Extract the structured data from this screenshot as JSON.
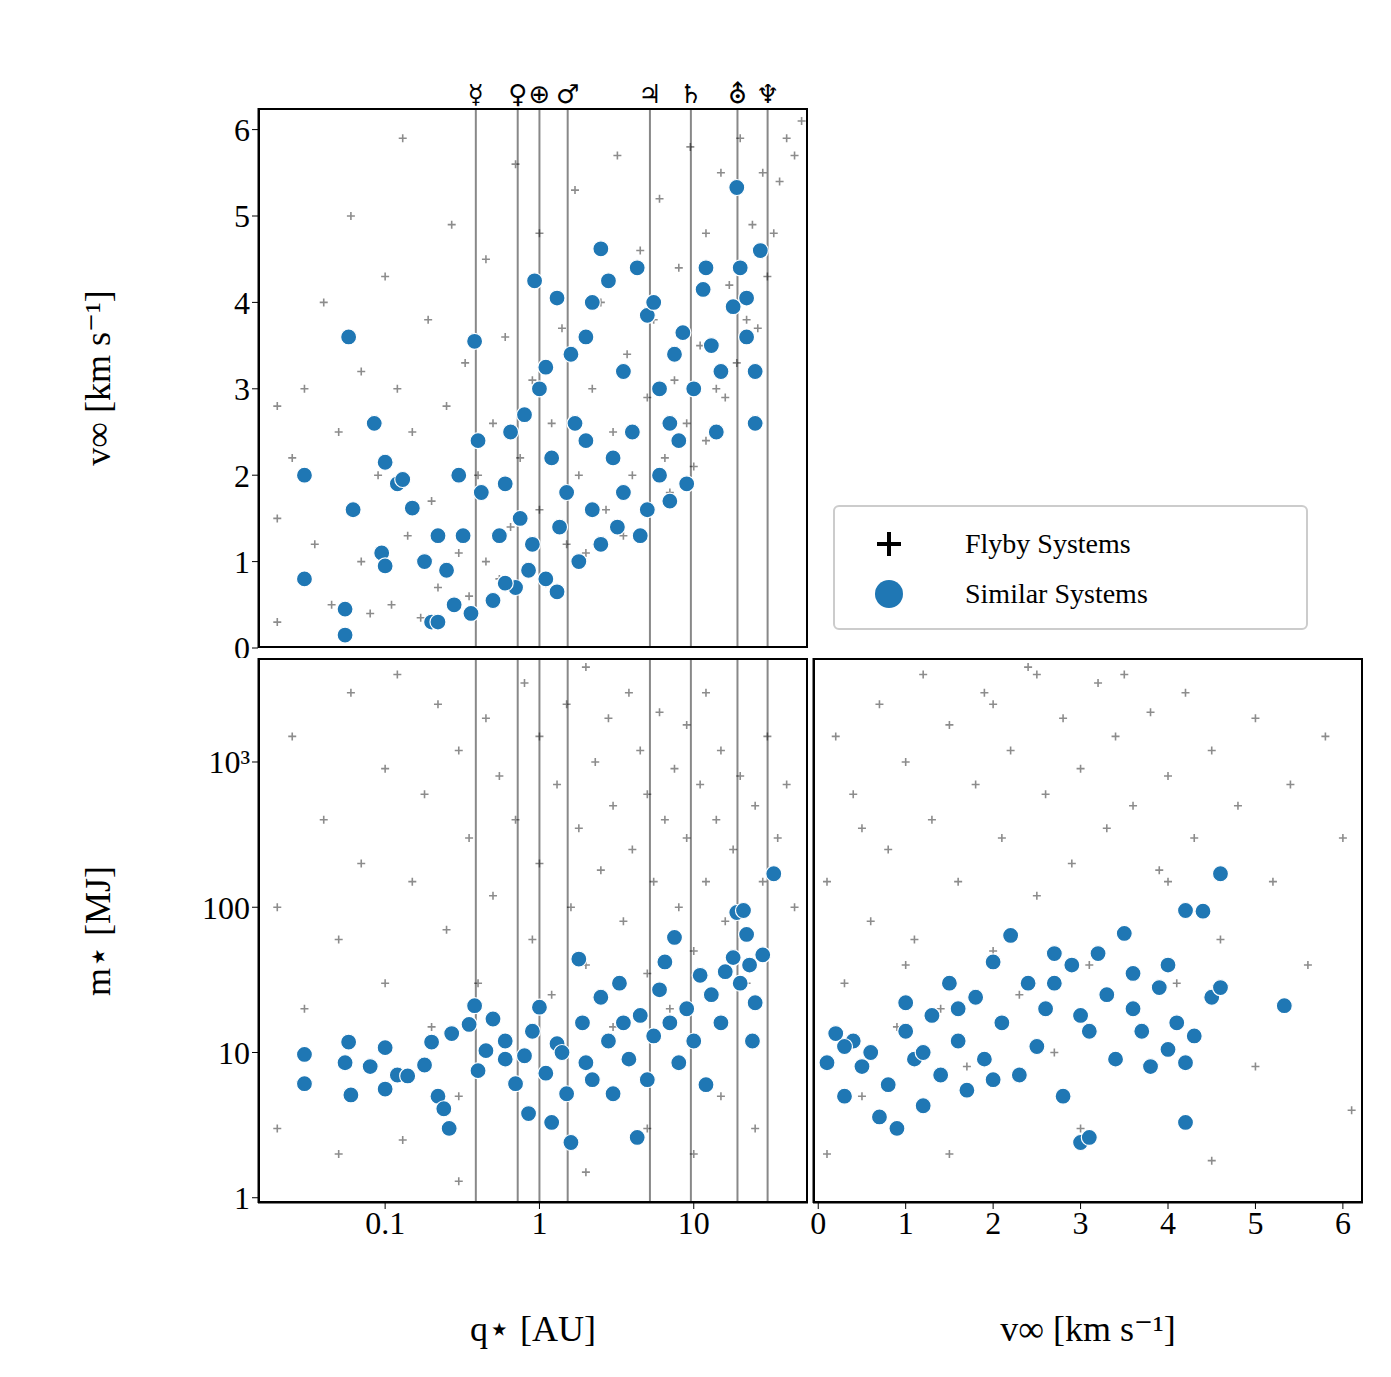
{
  "chart_data": [
    {
      "type": "scatter",
      "ylabel": "v∞ [km s⁻¹]",
      "log": "x",
      "tick_labels": "y",
      "legend": "right",
      "xlim": [
        0.015,
        55
      ],
      "xticks": [
        0.1,
        1,
        10
      ],
      "ylim": [
        0,
        6.25
      ],
      "yticks": [
        0,
        1,
        2,
        3,
        4,
        5,
        6
      ],
      "annotations": [
        {
          "x": 0.387,
          "label": "☿"
        },
        {
          "x": 0.723,
          "label": "♀"
        },
        {
          "x": 1.0,
          "label": "⊕"
        },
        {
          "x": 1.524,
          "label": "♂"
        },
        {
          "x": 5.2,
          "label": "♃"
        },
        {
          "x": 9.58,
          "label": "♄"
        },
        {
          "x": 19.2,
          "label": "⛢"
        },
        {
          "x": 30.1,
          "label": "♆"
        }
      ],
      "series": [
        {
          "name": "Flyby Systems",
          "color": "#000000",
          "marker": "plus",
          "x": [
            0.02,
            0.02,
            0.02,
            0.025,
            0.03,
            0.035,
            0.04,
            0.045,
            0.05,
            0.06,
            0.07,
            0.07,
            0.08,
            0.09,
            0.1,
            0.11,
            0.12,
            0.13,
            0.14,
            0.15,
            0.17,
            0.19,
            0.2,
            0.22,
            0.25,
            0.27,
            0.3,
            0.33,
            0.35,
            0.4,
            0.45,
            0.45,
            0.5,
            0.55,
            0.6,
            0.65,
            0.7,
            0.75,
            0.8,
            0.9,
            1.0,
            1.0,
            1.1,
            1.2,
            1.4,
            1.5,
            1.7,
            1.8,
            2.0,
            2.2,
            2.5,
            2.7,
            3.0,
            3.2,
            3.5,
            3.7,
            4.0,
            4.5,
            5.0,
            5.0,
            5.5,
            6.0,
            6.5,
            7.0,
            7.5,
            8.0,
            9.0,
            9.5,
            10,
            11,
            12,
            12,
            14,
            15,
            16,
            17,
            19,
            20,
            22,
            24,
            26,
            28,
            30,
            33,
            36,
            40,
            45,
            50
          ],
          "y": [
            0.3,
            1.5,
            2.8,
            2.2,
            3.0,
            1.2,
            4.0,
            0.5,
            2.5,
            5.0,
            1.0,
            3.2,
            0.4,
            2.0,
            4.3,
            0.5,
            3.0,
            5.9,
            1.3,
            2.5,
            0.35,
            3.8,
            1.7,
            0.7,
            2.8,
            4.9,
            1.1,
            3.3,
            0.6,
            2.0,
            1.0,
            4.5,
            2.6,
            0.8,
            3.6,
            1.4,
            5.6,
            2.2,
            0.9,
            3.1,
            1.6,
            4.8,
            0.75,
            2.6,
            3.7,
            1.2,
            5.3,
            2.0,
            1.1,
            3.0,
            4.0,
            1.6,
            2.5,
            5.7,
            1.3,
            3.4,
            2.0,
            4.6,
            1.6,
            2.9,
            3.8,
            5.2,
            2.2,
            1.8,
            3.1,
            4.4,
            2.6,
            5.8,
            2.1,
            3.5,
            4.8,
            2.4,
            3.0,
            5.5,
            2.9,
            4.2,
            3.3,
            5.9,
            3.8,
            4.9,
            3.7,
            5.5,
            4.3,
            4.8,
            5.4,
            5.9,
            5.7,
            6.1
          ]
        },
        {
          "name": "Similar Systems",
          "color": "#1f77b4",
          "marker": "circle",
          "x": [
            0.03,
            0.03,
            0.058,
            0.055,
            0.055,
            0.062,
            0.085,
            0.095,
            0.1,
            0.1,
            0.12,
            0.13,
            0.15,
            0.18,
            0.2,
            0.22,
            0.22,
            0.25,
            0.28,
            0.3,
            0.32,
            0.36,
            0.38,
            0.4,
            0.42,
            0.5,
            0.55,
            0.6,
            0.65,
            0.7,
            0.75,
            0.8,
            0.85,
            0.9,
            0.93,
            1.0,
            1.1,
            1.2,
            1.3,
            1.35,
            1.5,
            1.6,
            1.8,
            2.0,
            2.0,
            2.2,
            2.5,
            2.5,
            2.8,
            3.0,
            3.2,
            3.5,
            4.0,
            4.3,
            4.5,
            5.0,
            5.5,
            6.0,
            6.0,
            7.0,
            7.5,
            8.5,
            9.0,
            10,
            11.5,
            12,
            13,
            14,
            15,
            18,
            19,
            20,
            22,
            22,
            25,
            27,
            25,
            8,
            3.5,
            1.7,
            5,
            2.2,
            0.6,
            1.1,
            1.3,
            7
          ],
          "y": [
            2.0,
            0.8,
            3.6,
            0.45,
            0.15,
            1.6,
            2.6,
            1.1,
            0.95,
            2.15,
            1.9,
            1.95,
            1.62,
            1.0,
            0.3,
            0.3,
            1.3,
            0.9,
            0.5,
            2.0,
            1.3,
            0.4,
            3.55,
            2.4,
            1.8,
            0.55,
            1.3,
            1.9,
            2.5,
            0.7,
            1.5,
            2.7,
            0.9,
            1.2,
            4.25,
            3.0,
            3.25,
            2.2,
            4.05,
            1.4,
            1.8,
            3.4,
            1.0,
            3.6,
            2.4,
            4.0,
            4.62,
            1.2,
            4.25,
            2.2,
            1.4,
            3.2,
            2.5,
            4.4,
            1.3,
            3.85,
            4.0,
            2.0,
            3.0,
            2.6,
            3.4,
            3.65,
            1.9,
            3.0,
            4.15,
            4.4,
            3.5,
            2.5,
            3.2,
            3.95,
            5.33,
            4.4,
            4.05,
            3.6,
            3.2,
            4.6,
            2.6,
            2.4,
            1.8,
            2.6,
            1.6,
            1.6,
            0.75,
            0.8,
            0.65,
            1.7
          ]
        }
      ]
    },
    {
      "type": "scatter",
      "xlabel": "q⋆ [AU]",
      "ylabel": "m⋆ [MJ]",
      "log": true,
      "xlim": [
        0.015,
        55
      ],
      "xticks": [
        0.1,
        1,
        10
      ],
      "ylim": [
        0.92,
        5200
      ],
      "yticks": [
        1,
        10,
        100,
        {
          "value": 1000,
          "label": "10³"
        }
      ],
      "vlines": [
        0.387,
        0.723,
        1.0,
        1.524,
        5.2,
        9.58,
        19.2,
        30.1
      ],
      "series": [
        {
          "name": "Flyby Systems",
          "color": "#000000",
          "marker": "plus",
          "x": [
            0.02,
            0.02,
            0.025,
            0.03,
            0.04,
            0.05,
            0.05,
            0.06,
            0.07,
            0.08,
            0.1,
            0.1,
            0.12,
            0.13,
            0.15,
            0.18,
            0.2,
            0.22,
            0.25,
            0.3,
            0.3,
            0.35,
            0.4,
            0.45,
            0.5,
            0.55,
            0.6,
            0.7,
            0.8,
            0.9,
            1.0,
            1.0,
            1.2,
            1.3,
            1.5,
            1.6,
            1.8,
            2.0,
            2.0,
            2.3,
            2.5,
            2.8,
            3.0,
            3.0,
            3.5,
            3.8,
            4.0,
            4.5,
            5.0,
            5.0,
            5.5,
            6.0,
            6.5,
            7.0,
            7.5,
            8.0,
            9.0,
            9.0,
            10,
            11,
            12,
            12,
            14,
            15,
            16,
            18,
            20,
            22,
            25,
            28,
            30,
            35,
            40,
            45,
            5,
            15,
            2,
            0.3,
            25,
            10
          ],
          "y": [
            3,
            100,
            1500,
            20,
            400,
            2,
            60,
            3000,
            200,
            8,
            900,
            30,
            4000,
            2.5,
            150,
            600,
            15,
            2500,
            70,
            1200,
            5,
            300,
            30,
            2000,
            120,
            800,
            12,
            400,
            3500,
            60,
            1500,
            200,
            25,
            700,
            2500,
            100,
            350,
            4500,
            40,
            1000,
            180,
            2000,
            15,
            500,
            80,
            3000,
            250,
            1200,
            35,
            600,
            150,
            2200,
            400,
            20,
            900,
            100,
            1800,
            300,
            50,
            700,
            3000,
            150,
            400,
            1200,
            80,
            250,
            800,
            30,
            500,
            150,
            1500,
            300,
            700,
            100,
            3,
            5,
            1.5,
            1.3,
            3,
            2
          ]
        },
        {
          "name": "Similar Systems",
          "color": "#1f77b4",
          "marker": "circle",
          "x": [
            0.03,
            0.03,
            0.055,
            0.058,
            0.06,
            0.08,
            0.1,
            0.1,
            0.12,
            0.14,
            0.18,
            0.2,
            0.22,
            0.24,
            0.26,
            0.27,
            0.35,
            0.38,
            0.4,
            0.45,
            0.5,
            0.6,
            0.7,
            0.8,
            0.85,
            0.9,
            1.0,
            1.1,
            1.2,
            1.3,
            1.5,
            1.6,
            1.8,
            1.9,
            2.0,
            2.5,
            2.8,
            3.0,
            3.3,
            3.8,
            4.3,
            4.5,
            5.0,
            5.5,
            6.0,
            6.5,
            7.5,
            8.0,
            9.0,
            10,
            11,
            12,
            13,
            15,
            16,
            18,
            19,
            20,
            21,
            22,
            23,
            25,
            28,
            33,
            24,
            3.5,
            1.4,
            0.6,
            2.2,
            7
          ],
          "y": [
            9.7,
            6.1,
            8.5,
            11.8,
            5.1,
            8.0,
            5.6,
            10.8,
            7.0,
            6.9,
            8.2,
            11.8,
            5.0,
            4.1,
            3.0,
            13.5,
            15.6,
            21,
            7.5,
            10.3,
            17,
            12,
            6.1,
            9.5,
            3.8,
            14,
            20.5,
            7.2,
            3.3,
            11.5,
            5.2,
            2.4,
            44,
            16,
            8.5,
            24,
            12,
            5.2,
            30,
            9.0,
            2.6,
            18,
            6.5,
            13,
            27,
            42,
            62,
            8.5,
            20,
            12,
            34,
            6.0,
            25,
            16,
            36,
            45,
            92,
            30,
            95,
            65,
            40,
            22,
            47,
            170,
            12,
            16,
            10,
            9,
            6.5,
            16
          ]
        }
      ]
    },
    {
      "type": "scatter",
      "xlabel": "v∞ [km s⁻¹]",
      "log": "y",
      "tick_labels": "x",
      "xlim": [
        -0.06,
        6.23
      ],
      "xticks": [
        0,
        1,
        2,
        3,
        4,
        5,
        6
      ],
      "ylim": [
        0.92,
        5200
      ],
      "yticks": [
        1,
        10,
        100,
        {
          "value": 1000,
          "label": "10³"
        }
      ],
      "series": [
        {
          "name": "Flyby Systems",
          "color": "#000000",
          "marker": "plus",
          "x": [
            0.1,
            0.1,
            0.2,
            0.3,
            0.4,
            0.5,
            0.6,
            0.7,
            0.8,
            0.9,
            1.0,
            1.1,
            1.2,
            1.3,
            1.4,
            1.5,
            1.6,
            1.7,
            1.8,
            1.9,
            2.0,
            2.1,
            2.2,
            2.3,
            2.4,
            2.5,
            2.6,
            2.7,
            2.8,
            2.9,
            3.0,
            3.1,
            3.2,
            3.3,
            3.4,
            3.5,
            3.6,
            3.7,
            3.8,
            3.9,
            4.0,
            4.1,
            4.2,
            4.3,
            4.5,
            4.6,
            4.8,
            5.0,
            5.0,
            5.2,
            5.4,
            5.6,
            5.8,
            6.0,
            6.1,
            1.5,
            3.0,
            4.5,
            2.5,
            0.5,
            3.5,
            1.0,
            2.0,
            4.0
          ],
          "y": [
            2,
            150,
            1500,
            30,
            600,
            5,
            80,
            2500,
            250,
            15,
            1000,
            60,
            4000,
            400,
            20,
            1800,
            150,
            8,
            700,
            3000,
            50,
            300,
            1200,
            25,
            4500,
            120,
            600,
            10,
            2000,
            200,
            900,
            40,
            3500,
            350,
            1500,
            70,
            500,
            15,
            2200,
            180,
            800,
            30,
            3000,
            300,
            1200,
            60,
            500,
            2000,
            8,
            150,
            700,
            40,
            1500,
            300,
            4,
            2,
            3,
            1.8,
            4000,
            350,
            4000,
            40,
            2500,
            150
          ]
        },
        {
          "name": "Similar Systems",
          "color": "#1f77b4",
          "marker": "circle",
          "x": [
            0.1,
            0.2,
            0.3,
            0.4,
            0.5,
            0.6,
            0.7,
            0.8,
            0.9,
            1.0,
            1.0,
            1.1,
            1.2,
            1.3,
            1.4,
            1.5,
            1.6,
            1.7,
            1.8,
            1.9,
            2.0,
            2.1,
            2.2,
            2.3,
            2.4,
            2.5,
            2.6,
            2.7,
            2.8,
            2.9,
            3.0,
            3.1,
            3.1,
            3.2,
            3.3,
            3.4,
            3.5,
            3.6,
            3.7,
            3.8,
            3.9,
            4.0,
            4.0,
            4.1,
            4.2,
            4.2,
            4.2,
            4.3,
            4.4,
            4.5,
            4.6,
            4.6,
            5.33,
            0.3,
            1.6,
            2.7,
            3.6,
            1.2,
            2.0,
            3.0
          ],
          "y": [
            8.5,
            13.5,
            5.0,
            12,
            8.0,
            10,
            3.6,
            6.0,
            3.0,
            22,
            14,
            9.0,
            4.3,
            18,
            7,
            30,
            12,
            5.5,
            24,
            9,
            42,
            16,
            64,
            7,
            30,
            11,
            20,
            48,
            5,
            40,
            2.4,
            2.6,
            14,
            48,
            25,
            9,
            66,
            20,
            14,
            8,
            28,
            40,
            10.5,
            16,
            95,
            8.5,
            3.3,
            13,
            94,
            24,
            170,
            28,
            21,
            11,
            20,
            30,
            35,
            10,
            6.5,
            18
          ]
        }
      ]
    }
  ]
}
